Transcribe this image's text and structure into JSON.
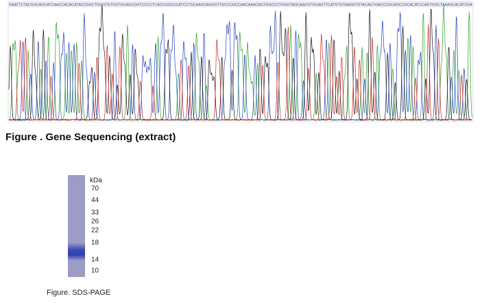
{
  "sequence": "GAATTCTACGGCAGCATCAACCACACATACCGGCTGGGTGTCGTGGAGCGGTCCCCTCACCGGCCCATCCTGCAAGCAGGGTTGCCCGCCAACAAACAGTGGCCCTGGGTAGCAACGTGGAGTTCATGTGTAAGGTGTACAGTGACCCGCAGCCGCACATCCAGTGGCTAAAGCACATCGA",
  "figure1_caption": "Figure . Gene Sequencing (extract)",
  "gel": {
    "unit": "kDa",
    "markers": [
      "70",
      "44",
      "33",
      "26",
      "22",
      "18",
      "14",
      "10"
    ]
  },
  "figure2_caption": "Figure. SDS-PAGE"
}
